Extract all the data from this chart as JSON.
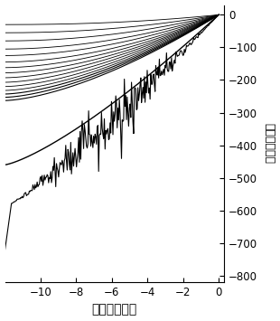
{
  "xlim": [
    -12,
    0.3
  ],
  "ylim": [
    -820,
    30
  ],
  "xticks": [
    -10,
    -8,
    -6,
    -4,
    -2,
    0
  ],
  "yticks": [
    0,
    -100,
    -200,
    -300,
    -400,
    -500,
    -600,
    -700,
    -800
  ],
  "xlabel": "电压（伏特）",
  "ylabel_line1": "电",
  "ylabel_line2": "流",
  "ylabel_line3": "（",
  "ylabel_line4": "纳",
  "ylabel_line5": "安",
  "ylabel_line6": "）",
  "background_color": "#ffffff",
  "line_color": "#000000",
  "figsize": [
    3.1,
    3.55
  ],
  "dpi": 100,
  "curve_scales": [
    -30,
    -55,
    -80,
    -105,
    -125,
    -145,
    -162,
    -178,
    -193,
    -207,
    -220,
    -232,
    -243,
    -253,
    -263
  ],
  "curve_powers": [
    2.2,
    2.1,
    2.0,
    1.9,
    1.85,
    1.8,
    1.75,
    1.7,
    1.65,
    1.62,
    1.6,
    1.58,
    1.56,
    1.55,
    1.54
  ],
  "outer_curve_scale": -460,
  "outer_curve_power": 1.3,
  "bottom_curve_base": -590,
  "bottom_curve_noise_seed": 15
}
